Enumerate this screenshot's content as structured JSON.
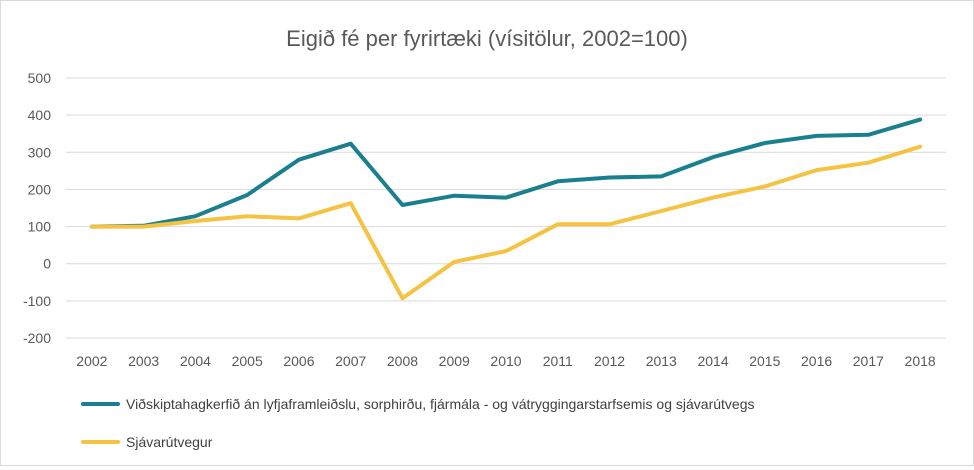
{
  "chart_data": {
    "type": "line",
    "title": "Eigið fé per fyrirtæki (vísitölur, 2002=100)",
    "xlabel": "",
    "ylabel": "",
    "categories": [
      "2002",
      "2003",
      "2004",
      "2005",
      "2006",
      "2007",
      "2008",
      "2009",
      "2010",
      "2011",
      "2012",
      "2013",
      "2014",
      "2015",
      "2016",
      "2017",
      "2018"
    ],
    "ylim": [
      -200,
      500
    ],
    "yticks": [
      500,
      400,
      300,
      200,
      100,
      0,
      -100,
      -200
    ],
    "yticklabels": [
      "500",
      "400",
      "300",
      "200",
      "100",
      "0",
      "-100",
      "-200"
    ],
    "grid": true,
    "legend_position": "bottom",
    "series": [
      {
        "name": "Viðskiptahagkerfið án lyfjaframleiðslu, sorphirðu, fjármála - og vátryggingarstarfsemis og sjávarútvegs",
        "color": "#1a7f8e",
        "values": [
          100,
          102,
          128,
          185,
          280,
          323,
          158,
          183,
          178,
          222,
          232,
          235,
          287,
          325,
          344,
          347,
          388
        ]
      },
      {
        "name": "Sjávarútvegur",
        "color": "#f5c242",
        "values": [
          100,
          100,
          115,
          128,
          122,
          163,
          -93,
          5,
          34,
          106,
          106,
          142,
          178,
          208,
          252,
          272,
          315
        ]
      }
    ]
  }
}
